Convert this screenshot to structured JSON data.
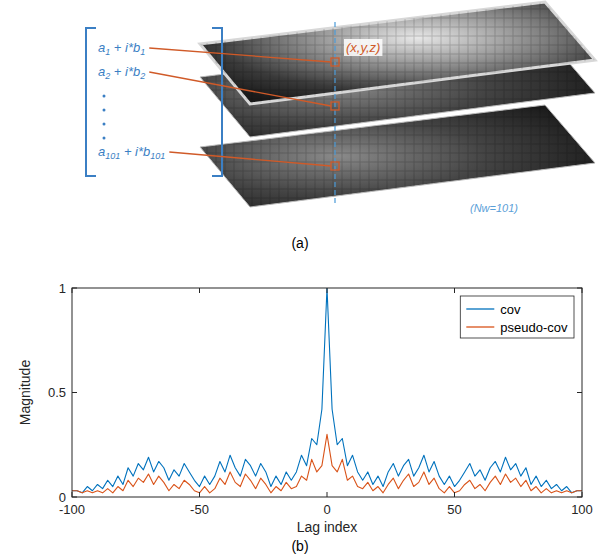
{
  "diagram": {
    "point_label": "(x,y,z)",
    "window_label": "(Nw=101)",
    "panel_label": "(a)",
    "entries": [
      [
        "a",
        "1",
        " + i*b",
        "1"
      ],
      [
        "a",
        "2",
        " + i*b",
        "2"
      ],
      [
        "a",
        "101",
        " + i*b",
        "101"
      ]
    ]
  },
  "chart_data": {
    "type": "line",
    "panel_label": "(b)",
    "x_label": "Lag index",
    "y_label": "Magnitude",
    "x": [
      -100,
      -98,
      -96,
      -94,
      -92,
      -90,
      -88,
      -86,
      -84,
      -82,
      -80,
      -78,
      -76,
      -74,
      -72,
      -70,
      -68,
      -66,
      -64,
      -62,
      -60,
      -58,
      -56,
      -54,
      -52,
      -50,
      -48,
      -46,
      -44,
      -42,
      -40,
      -38,
      -36,
      -34,
      -32,
      -30,
      -28,
      -26,
      -24,
      -22,
      -20,
      -18,
      -16,
      -14,
      -12,
      -10,
      -8,
      -6,
      -4,
      -2,
      0,
      2,
      4,
      6,
      8,
      10,
      12,
      14,
      16,
      18,
      20,
      22,
      24,
      26,
      28,
      30,
      32,
      34,
      36,
      38,
      40,
      42,
      44,
      46,
      48,
      50,
      52,
      54,
      56,
      58,
      60,
      62,
      64,
      66,
      68,
      70,
      72,
      74,
      76,
      78,
      80,
      82,
      84,
      86,
      88,
      90,
      92,
      94,
      96,
      98,
      100
    ],
    "series": [
      {
        "name": "cov",
        "color": "#0072bd",
        "values": [
          0.03,
          0.03,
          0.02,
          0.05,
          0.03,
          0.06,
          0.04,
          0.08,
          0.05,
          0.1,
          0.06,
          0.14,
          0.1,
          0.16,
          0.13,
          0.19,
          0.12,
          0.17,
          0.14,
          0.08,
          0.13,
          0.1,
          0.16,
          0.12,
          0.08,
          0.05,
          0.1,
          0.06,
          0.1,
          0.17,
          0.12,
          0.2,
          0.14,
          0.1,
          0.18,
          0.15,
          0.1,
          0.16,
          0.12,
          0.05,
          0.1,
          0.06,
          0.12,
          0.08,
          0.12,
          0.2,
          0.15,
          0.28,
          0.25,
          0.42,
          1.0,
          0.42,
          0.25,
          0.28,
          0.15,
          0.2,
          0.12,
          0.08,
          0.12,
          0.06,
          0.1,
          0.05,
          0.12,
          0.16,
          0.1,
          0.15,
          0.18,
          0.1,
          0.14,
          0.2,
          0.12,
          0.17,
          0.1,
          0.06,
          0.1,
          0.05,
          0.08,
          0.12,
          0.16,
          0.1,
          0.13,
          0.08,
          0.14,
          0.17,
          0.12,
          0.19,
          0.13,
          0.16,
          0.1,
          0.14,
          0.06,
          0.1,
          0.05,
          0.08,
          0.04,
          0.06,
          0.03,
          0.05,
          0.02,
          0.03,
          0.03
        ]
      },
      {
        "name": "pseudo-cov",
        "color": "#d95319",
        "values": [
          0.03,
          0.03,
          0.02,
          0.03,
          0.02,
          0.03,
          0.02,
          0.04,
          0.02,
          0.05,
          0.03,
          0.08,
          0.05,
          0.09,
          0.07,
          0.11,
          0.06,
          0.1,
          0.07,
          0.03,
          0.06,
          0.04,
          0.08,
          0.06,
          0.03,
          0.02,
          0.05,
          0.02,
          0.04,
          0.09,
          0.06,
          0.12,
          0.07,
          0.05,
          0.11,
          0.08,
          0.04,
          0.09,
          0.06,
          0.02,
          0.05,
          0.03,
          0.07,
          0.04,
          0.05,
          0.1,
          0.08,
          0.18,
          0.12,
          0.15,
          0.3,
          0.15,
          0.12,
          0.18,
          0.08,
          0.1,
          0.05,
          0.04,
          0.07,
          0.03,
          0.05,
          0.02,
          0.06,
          0.09,
          0.04,
          0.08,
          0.11,
          0.05,
          0.07,
          0.12,
          0.06,
          0.09,
          0.04,
          0.02,
          0.05,
          0.02,
          0.03,
          0.06,
          0.08,
          0.04,
          0.06,
          0.03,
          0.07,
          0.1,
          0.06,
          0.11,
          0.07,
          0.09,
          0.05,
          0.08,
          0.03,
          0.05,
          0.02,
          0.04,
          0.02,
          0.03,
          0.02,
          0.03,
          0.02,
          0.03,
          0.03
        ]
      }
    ],
    "xlim": [
      -100,
      100
    ],
    "xticks": [
      -100,
      -50,
      0,
      50,
      100
    ],
    "ylim": [
      0,
      1
    ],
    "yticks": [
      0,
      0.5,
      1
    ],
    "legend": "top-right",
    "grid": false
  }
}
